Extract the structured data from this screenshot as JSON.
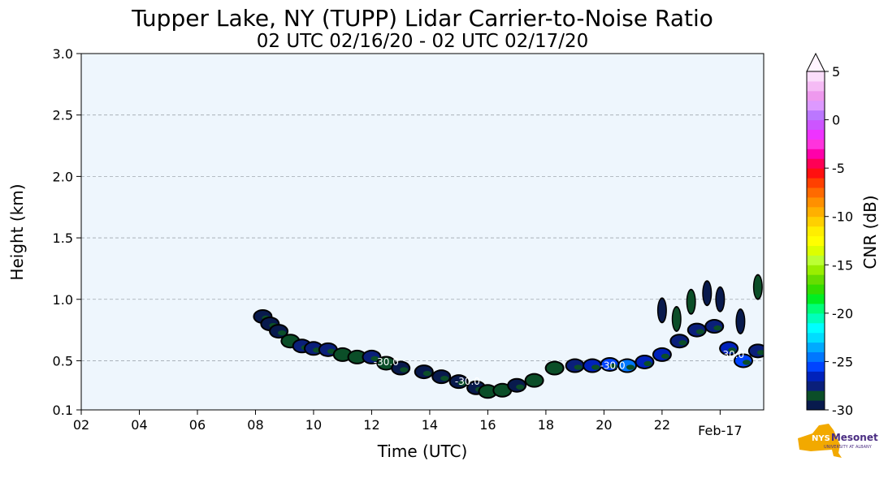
{
  "chart_data": {
    "type": "heatmap",
    "title": "Tupper Lake, NY (TUPP) Lidar Carrier-to-Noise Ratio",
    "subtitle": "02 UTC 02/16/20 - 02 UTC 02/17/20",
    "xlabel": "Time (UTC)",
    "ylabel": "Height (km)",
    "x_range_hours": [
      2,
      25.5
    ],
    "x_ticks": [
      {
        "value": 2,
        "label": "02"
      },
      {
        "value": 4,
        "label": "04"
      },
      {
        "value": 6,
        "label": "06"
      },
      {
        "value": 8,
        "label": "08"
      },
      {
        "value": 10,
        "label": "10"
      },
      {
        "value": 12,
        "label": "12"
      },
      {
        "value": 14,
        "label": "14"
      },
      {
        "value": 16,
        "label": "16"
      },
      {
        "value": 18,
        "label": "18"
      },
      {
        "value": 20,
        "label": "20"
      },
      {
        "value": 22,
        "label": "22"
      }
    ],
    "x_extra_label": {
      "value": 24.0,
      "label": "Feb-17"
    },
    "ylim": [
      0.1,
      3.0
    ],
    "y_ticks": [
      {
        "value": 0.1,
        "label": "0.1"
      },
      {
        "value": 0.5,
        "label": "0.5"
      },
      {
        "value": 1.0,
        "label": "1.0"
      },
      {
        "value": 1.5,
        "label": "1.5"
      },
      {
        "value": 2.0,
        "label": "2.0"
      },
      {
        "value": 2.5,
        "label": "2.5"
      },
      {
        "value": 3.0,
        "label": "3.0"
      }
    ],
    "grid": "horizontal dashed",
    "background_color": "#eef6fd",
    "colorbar": {
      "label": "CNR (dB)",
      "range": [
        -30,
        5
      ],
      "ticks": [
        {
          "value": 5,
          "label": "5"
        },
        {
          "value": 0,
          "label": "0"
        },
        {
          "value": -5,
          "label": "-5"
        },
        {
          "value": -10,
          "label": "-10"
        },
        {
          "value": -15,
          "label": "-15"
        },
        {
          "value": -20,
          "label": "-20"
        },
        {
          "value": -25,
          "label": "-25"
        },
        {
          "value": -30,
          "label": "-30"
        }
      ],
      "colors": [
        "#081a4d",
        "#0b4e28",
        "#0a1f7a",
        "#0022bb",
        "#0044ff",
        "#0077ff",
        "#00aaff",
        "#00ddff",
        "#00ffff",
        "#00ffbb",
        "#00ff77",
        "#00ee22",
        "#33dd00",
        "#66dd00",
        "#99ee00",
        "#bbff33",
        "#ddff00",
        "#ffff00",
        "#ffee00",
        "#ffd000",
        "#ffb000",
        "#ff9000",
        "#ff6a00",
        "#ff4000",
        "#ff1010",
        "#ff0055",
        "#ff00aa",
        "#ff33dd",
        "#ee33ff",
        "#cc55ff",
        "#bb77ff",
        "#dd99ff",
        "#ee99ee",
        "#f5bbf5",
        "#fbddfb"
      ]
    },
    "cloud_layer": [
      {
        "t": 8.25,
        "h": 0.86,
        "cnr": -30
      },
      {
        "t": 8.5,
        "h": 0.8,
        "cnr": -30
      },
      {
        "t": 8.8,
        "h": 0.74,
        "cnr": -30
      },
      {
        "t": 9.2,
        "h": 0.66,
        "cnr": -29
      },
      {
        "t": 9.6,
        "h": 0.62,
        "cnr": -28
      },
      {
        "t": 10.0,
        "h": 0.6,
        "cnr": -28
      },
      {
        "t": 10.5,
        "h": 0.59,
        "cnr": -28
      },
      {
        "t": 11.0,
        "h": 0.55,
        "cnr": -29
      },
      {
        "t": 11.5,
        "h": 0.53,
        "cnr": -29
      },
      {
        "t": 12.0,
        "h": 0.53,
        "cnr": -28
      },
      {
        "t": 12.5,
        "h": 0.48,
        "cnr": -29
      },
      {
        "t": 13.0,
        "h": 0.44,
        "cnr": -30
      },
      {
        "t": 13.8,
        "h": 0.41,
        "cnr": -30
      },
      {
        "t": 14.4,
        "h": 0.37,
        "cnr": -30
      },
      {
        "t": 15.0,
        "h": 0.33,
        "cnr": -30
      },
      {
        "t": 15.6,
        "h": 0.28,
        "cnr": -30
      },
      {
        "t": 16.0,
        "h": 0.25,
        "cnr": -29
      },
      {
        "t": 16.5,
        "h": 0.26,
        "cnr": -29
      },
      {
        "t": 17.0,
        "h": 0.3,
        "cnr": -30
      },
      {
        "t": 17.6,
        "h": 0.34,
        "cnr": -29
      },
      {
        "t": 18.3,
        "h": 0.44,
        "cnr": -29
      },
      {
        "t": 19.0,
        "h": 0.46,
        "cnr": -28
      },
      {
        "t": 19.6,
        "h": 0.46,
        "cnr": -27
      },
      {
        "t": 20.2,
        "h": 0.47,
        "cnr": -26
      },
      {
        "t": 20.8,
        "h": 0.46,
        "cnr": -25
      },
      {
        "t": 21.4,
        "h": 0.49,
        "cnr": -27
      },
      {
        "t": 22.0,
        "h": 0.55,
        "cnr": -27
      },
      {
        "t": 22.6,
        "h": 0.66,
        "cnr": -28
      },
      {
        "t": 23.2,
        "h": 0.75,
        "cnr": -28
      },
      {
        "t": 23.8,
        "h": 0.78,
        "cnr": -28
      },
      {
        "t": 24.3,
        "h": 0.6,
        "cnr": -27
      },
      {
        "t": 24.8,
        "h": 0.5,
        "cnr": -26
      },
      {
        "t": 25.3,
        "h": 0.58,
        "cnr": -28
      }
    ],
    "blobs": [
      {
        "t": 22.0,
        "h": 0.91,
        "cnr": -30
      },
      {
        "t": 22.5,
        "h": 0.84,
        "cnr": -29
      },
      {
        "t": 23.0,
        "h": 0.98,
        "cnr": -29
      },
      {
        "t": 23.55,
        "h": 1.05,
        "cnr": -30
      },
      {
        "t": 24.0,
        "h": 1.0,
        "cnr": -30
      },
      {
        "t": 25.3,
        "h": 1.1,
        "cnr": -29
      },
      {
        "t": 24.7,
        "h": 0.82,
        "cnr": -30
      }
    ],
    "contour_labels": [
      {
        "t": 12.5,
        "h": 0.49,
        "label": "-30.0"
      },
      {
        "t": 15.3,
        "h": 0.33,
        "label": "-30.0"
      },
      {
        "t": 20.3,
        "h": 0.46,
        "label": "-30.0"
      },
      {
        "t": 24.4,
        "h": 0.55,
        "label": "-30.0"
      }
    ]
  },
  "logo": {
    "nys": "NYS",
    "name": "Mesonet",
    "sub": "UNIVERSITY AT ALBANY"
  }
}
